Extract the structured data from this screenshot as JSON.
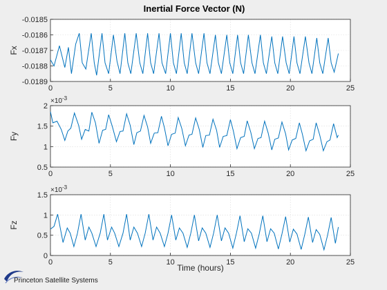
{
  "title": "Inertial Force Vector (N)",
  "xlabel": "Time (hours)",
  "brand": "Princeton Satellite Systems",
  "colors": {
    "line": "#0072bd",
    "background": "#eeeeee",
    "brand_swoosh": "#1f3a8a"
  },
  "chart_data": [
    {
      "type": "line",
      "ylabel": "Fx",
      "xlim": [
        0,
        25
      ],
      "ylim": [
        -0.0189,
        -0.0185
      ],
      "xticks": [
        "0",
        "5",
        "10",
        "15",
        "20",
        "25"
      ],
      "yticks": [
        "-0.0189",
        "-0.0188",
        "-0.0187",
        "-0.0186",
        "-0.0185"
      ],
      "exponent": "",
      "grid": true,
      "series": [
        {
          "period_hours": 1.9,
          "x_end": 24,
          "x": [
            0,
            0.3,
            0.75,
            1.2,
            1.5,
            1.75,
            2.1,
            2.4,
            2.65,
            2.95,
            3.4,
            3.65,
            3.85,
            4.3,
            4.55,
            4.85,
            5.25,
            5.55,
            5.8,
            6.2,
            6.45,
            6.7,
            7.15,
            7.45,
            7.7,
            8.1,
            8.35,
            8.6,
            9.05,
            9.3,
            9.6,
            10.0,
            10.25,
            10.5,
            10.9,
            11.15,
            11.4,
            11.8,
            12.1,
            12.35,
            12.8,
            13.05,
            13.3,
            13.75,
            14.0,
            14.25,
            14.7,
            14.95,
            15.2,
            15.6,
            15.85,
            16.1,
            16.5,
            16.8,
            17.05,
            17.5,
            17.75,
            18.0,
            18.45,
            18.7,
            18.95,
            19.35,
            19.65,
            19.9,
            20.3,
            20.55,
            20.8,
            21.25,
            21.55,
            21.8,
            22.2,
            22.45,
            22.7,
            23.15,
            23.4,
            23.65,
            24.0
          ],
          "y": [
            -0.01876,
            -0.0188,
            -0.01867,
            -0.01881,
            -0.01868,
            -0.01885,
            -0.01866,
            -0.01859,
            -0.01878,
            -0.01882,
            -0.01859,
            -0.01878,
            -0.01886,
            -0.01859,
            -0.01878,
            -0.01885,
            -0.0186,
            -0.01877,
            -0.01885,
            -0.01859,
            -0.01878,
            -0.01885,
            -0.01859,
            -0.01878,
            -0.01885,
            -0.01859,
            -0.01878,
            -0.01885,
            -0.01859,
            -0.01878,
            -0.01885,
            -0.01859,
            -0.01878,
            -0.01885,
            -0.01859,
            -0.01878,
            -0.01885,
            -0.01859,
            -0.01878,
            -0.01885,
            -0.01859,
            -0.01878,
            -0.01885,
            -0.0186,
            -0.01878,
            -0.01885,
            -0.0186,
            -0.01878,
            -0.01885,
            -0.0186,
            -0.01878,
            -0.01885,
            -0.0186,
            -0.01878,
            -0.01885,
            -0.0186,
            -0.01878,
            -0.01885,
            -0.01861,
            -0.01878,
            -0.01885,
            -0.01861,
            -0.01878,
            -0.01885,
            -0.01861,
            -0.01878,
            -0.01885,
            -0.01861,
            -0.01878,
            -0.01885,
            -0.01862,
            -0.01878,
            -0.01885,
            -0.01862,
            -0.01878,
            -0.01884,
            -0.01872
          ]
        }
      ]
    },
    {
      "type": "line",
      "ylabel": "Fy",
      "xlim": [
        0,
        25
      ],
      "ylim": [
        0.5,
        2
      ],
      "xticks": [
        "0",
        "5",
        "10",
        "15",
        "20",
        "25"
      ],
      "yticks": [
        "0.5",
        "1",
        "1.5",
        "2"
      ],
      "exponent": "-3",
      "grid": true,
      "series": [
        {
          "x": [
            0,
            0.2,
            0.55,
            0.9,
            1.2,
            1.45,
            1.7,
            2.0,
            2.35,
            2.6,
            2.9,
            3.2,
            3.45,
            3.75,
            4.05,
            4.35,
            4.6,
            4.85,
            5.15,
            5.5,
            5.8,
            6.05,
            6.35,
            6.65,
            6.95,
            7.2,
            7.5,
            7.8,
            8.1,
            8.35,
            8.65,
            8.95,
            9.25,
            9.5,
            9.8,
            10.1,
            10.4,
            10.65,
            10.95,
            11.25,
            11.55,
            11.8,
            12.1,
            12.4,
            12.7,
            12.95,
            13.25,
            13.55,
            13.85,
            14.1,
            14.4,
            14.7,
            15.0,
            15.25,
            15.55,
            15.85,
            16.15,
            16.4,
            16.7,
            17.0,
            17.3,
            17.55,
            17.85,
            18.15,
            18.45,
            18.7,
            19.0,
            19.3,
            19.6,
            19.85,
            20.15,
            20.45,
            20.75,
            21.0,
            21.3,
            21.6,
            21.9,
            22.15,
            22.45,
            22.75,
            23.05,
            23.3,
            23.6,
            23.9,
            24.0
          ],
          "y": [
            1.85,
            1.58,
            1.62,
            1.42,
            1.15,
            1.38,
            1.45,
            1.82,
            1.52,
            1.18,
            1.42,
            1.38,
            1.84,
            1.58,
            1.08,
            1.4,
            1.42,
            1.78,
            1.5,
            1.12,
            1.37,
            1.38,
            1.8,
            1.52,
            1.05,
            1.34,
            1.38,
            1.76,
            1.48,
            1.08,
            1.33,
            1.34,
            1.74,
            1.46,
            1.02,
            1.3,
            1.33,
            1.71,
            1.44,
            1.02,
            1.28,
            1.3,
            1.7,
            1.42,
            0.98,
            1.27,
            1.28,
            1.67,
            1.4,
            0.98,
            1.25,
            1.27,
            1.66,
            1.38,
            0.95,
            1.22,
            1.25,
            1.63,
            1.35,
            0.95,
            1.2,
            1.22,
            1.62,
            1.33,
            0.92,
            1.18,
            1.21,
            1.6,
            1.31,
            0.92,
            1.16,
            1.2,
            1.58,
            1.3,
            0.9,
            1.14,
            1.18,
            1.58,
            1.28,
            0.9,
            1.12,
            1.16,
            1.56,
            1.22,
            1.28
          ]
        }
      ]
    },
    {
      "type": "line",
      "ylabel": "Fz",
      "xlim": [
        0,
        25
      ],
      "ylim": [
        0,
        1.5
      ],
      "xticks": [
        "0",
        "5",
        "10",
        "15",
        "20",
        "25"
      ],
      "yticks": [
        "0",
        "0.5",
        "1",
        "1.5"
      ],
      "exponent": "-3",
      "grid": true,
      "series": [
        {
          "x": [
            0,
            0.3,
            0.6,
            1.05,
            1.4,
            1.65,
            1.95,
            2.25,
            2.55,
            2.9,
            3.2,
            3.45,
            3.8,
            4.15,
            4.45,
            4.75,
            5.1,
            5.35,
            5.7,
            6.05,
            6.35,
            6.65,
            6.95,
            7.25,
            7.6,
            7.9,
            8.2,
            8.55,
            8.85,
            9.15,
            9.5,
            9.8,
            10.1,
            10.45,
            10.75,
            11.05,
            11.4,
            11.7,
            12.0,
            12.35,
            12.65,
            12.95,
            13.3,
            13.6,
            13.9,
            14.25,
            14.55,
            14.85,
            15.2,
            15.5,
            15.8,
            16.15,
            16.45,
            16.75,
            17.1,
            17.4,
            17.7,
            18.05,
            18.35,
            18.65,
            19.0,
            19.3,
            19.6,
            19.95,
            20.25,
            20.55,
            20.9,
            21.2,
            21.5,
            21.85,
            22.15,
            22.45,
            22.8,
            23.1,
            23.4,
            23.75,
            24.0
          ],
          "y": [
            0.65,
            0.72,
            1.02,
            0.32,
            0.68,
            0.55,
            0.22,
            0.55,
            1.02,
            0.38,
            0.7,
            0.55,
            0.22,
            0.55,
            1.02,
            0.38,
            0.7,
            0.55,
            0.22,
            0.55,
            1.02,
            0.38,
            0.7,
            0.55,
            0.22,
            0.55,
            1.02,
            0.38,
            0.7,
            0.55,
            0.22,
            0.55,
            1.0,
            0.38,
            0.68,
            0.55,
            0.2,
            0.55,
            1.0,
            0.36,
            0.68,
            0.55,
            0.2,
            0.55,
            1.0,
            0.36,
            0.68,
            0.55,
            0.18,
            0.55,
            0.98,
            0.34,
            0.66,
            0.55,
            0.18,
            0.53,
            0.98,
            0.34,
            0.66,
            0.55,
            0.16,
            0.53,
            0.96,
            0.33,
            0.65,
            0.53,
            0.15,
            0.52,
            0.95,
            0.32,
            0.64,
            0.52,
            0.14,
            0.5,
            0.94,
            0.3,
            0.7
          ]
        }
      ]
    }
  ]
}
